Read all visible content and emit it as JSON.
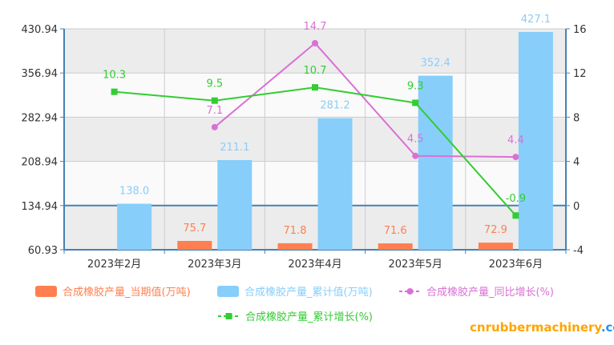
{
  "chart_data": {
    "type": "bar+line",
    "categories": [
      "2023年2月",
      "2023年3月",
      "2023年4月",
      "2023年5月",
      "2023年6月"
    ],
    "y_left": {
      "ticks": [
        "430.94",
        "356.94",
        "282.94",
        "208.94",
        "134.94",
        "60.93"
      ],
      "ylim": [
        60.93,
        430.94
      ]
    },
    "y_right": {
      "ticks": [
        "16",
        "12",
        "8",
        "4",
        "0",
        "-4"
      ],
      "ylim": [
        -4,
        16
      ]
    },
    "grid": true,
    "legend_position": "bottom",
    "series": [
      {
        "name": "合成橡胶产量_当期值(万吨)",
        "type": "bar",
        "axis": "left",
        "color": "#ff7f50",
        "values": [
          null,
          75.7,
          71.8,
          71.6,
          72.9
        ],
        "labels": [
          "",
          "75.7",
          "71.8",
          "71.6",
          "72.9"
        ]
      },
      {
        "name": "合成橡胶产量_累计值(万吨)",
        "type": "bar",
        "axis": "left",
        "color": "#87cefa",
        "values": [
          138.0,
          211.1,
          281.2,
          352.4,
          427.1
        ],
        "labels": [
          "138.0",
          "211.1",
          "281.2",
          "352.4",
          "427.1"
        ]
      },
      {
        "name": "合成橡胶产量_同比增长(%)",
        "type": "line",
        "axis": "right",
        "color": "#da70d6",
        "marker": "circle",
        "values": [
          null,
          7.1,
          14.7,
          4.5,
          4.4
        ],
        "labels": [
          "",
          "7.1",
          "14.7",
          "4.5",
          "4.4"
        ]
      },
      {
        "name": "合成橡胶产量_累计增长(%)",
        "type": "line",
        "axis": "right",
        "color": "#32cd32",
        "marker": "square",
        "values": [
          10.3,
          9.5,
          10.7,
          9.3,
          -0.9
        ],
        "labels": [
          "10.3",
          "9.5",
          "10.7",
          "9.3",
          "-0.9"
        ]
      }
    ]
  },
  "watermark": {
    "text": "cnrubbermachinery",
    "suffix": ".com",
    "color_main": "#ffa500",
    "color_suffix": "#1e90ff"
  }
}
